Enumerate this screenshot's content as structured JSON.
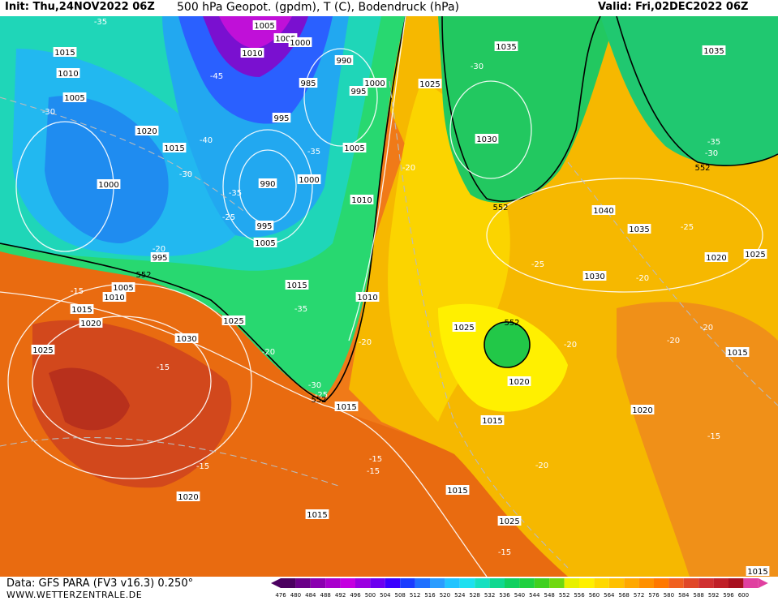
{
  "header": {
    "init": "Init: Thu,24NOV2022 06Z",
    "title": "500 hPa Geopot. (gpdm), T (C), Bodendruck (hPa)",
    "valid": "Valid: Fri,02DEC2022 06Z"
  },
  "footer": {
    "data_source": "Data: GFS PARA (FV3 v16.3) 0.250°",
    "website": "WWW.WETTERZENTRALE.DE"
  },
  "color_scale": {
    "values": [
      "476",
      "480",
      "484",
      "488",
      "492",
      "496",
      "500",
      "504",
      "508",
      "512",
      "516",
      "520",
      "524",
      "528",
      "532",
      "536",
      "540",
      "544",
      "548",
      "552",
      "556",
      "560",
      "564",
      "568",
      "572",
      "576",
      "580",
      "584",
      "588",
      "592",
      "596",
      "600"
    ],
    "colors": [
      "#4b0060",
      "#6a0088",
      "#8a00b0",
      "#a800cc",
      "#c400e0",
      "#9a00e0",
      "#6c00f0",
      "#3a00ff",
      "#1a3cff",
      "#1f70ff",
      "#2a9cff",
      "#22c4ff",
      "#1ee0f0",
      "#17e0c0",
      "#10d890",
      "#10d060",
      "#20d040",
      "#40d020",
      "#70d810",
      "#e8f000",
      "#fff000",
      "#ffd800",
      "#ffc000",
      "#ffa800",
      "#ff9000",
      "#ff7800",
      "#f06020",
      "#e04828",
      "#d03030",
      "#c02028",
      "#a81020",
      "#e040a0"
    ]
  },
  "map": {
    "isobar_labels": [
      {
        "text": "1005"
      },
      {
        "text": "1005"
      },
      {
        "text": "1000"
      },
      {
        "text": "1010"
      },
      {
        "text": "990"
      },
      {
        "text": "1035"
      },
      {
        "text": "1035"
      },
      {
        "text": "1015"
      },
      {
        "text": "1010"
      },
      {
        "text": "1005"
      },
      {
        "text": "985"
      },
      {
        "text": "1000"
      },
      {
        "text": "995"
      },
      {
        "text": "1025"
      },
      {
        "text": "995"
      },
      {
        "text": "1020"
      },
      {
        "text": "1015"
      },
      {
        "text": "1005"
      },
      {
        "text": "1030"
      },
      {
        "text": "1000"
      },
      {
        "text": "990"
      },
      {
        "text": "1000"
      },
      {
        "text": "1010"
      },
      {
        "text": "1040"
      },
      {
        "text": "995"
      },
      {
        "text": "1035"
      },
      {
        "text": "1005"
      },
      {
        "text": "995"
      },
      {
        "text": "1020"
      },
      {
        "text": "1025"
      },
      {
        "text": "1005"
      },
      {
        "text": "1010"
      },
      {
        "text": "1015"
      },
      {
        "text": "1030"
      },
      {
        "text": "1015"
      },
      {
        "text": "1010"
      },
      {
        "text": "1020"
      },
      {
        "text": "1025"
      },
      {
        "text": "1025"
      },
      {
        "text": "1030"
      },
      {
        "text": "1025"
      },
      {
        "text": "1015"
      },
      {
        "text": "1020"
      },
      {
        "text": "1015"
      },
      {
        "text": "1020"
      },
      {
        "text": "1015"
      },
      {
        "text": "1015"
      },
      {
        "text": "1025"
      },
      {
        "text": "1020"
      },
      {
        "text": "1015"
      },
      {
        "text": "1015"
      }
    ],
    "temp_labels": [
      {
        "text": "-35"
      },
      {
        "text": "-30"
      },
      {
        "text": "-45"
      },
      {
        "text": "-30"
      },
      {
        "text": "-40"
      },
      {
        "text": "-30"
      },
      {
        "text": "-35"
      },
      {
        "text": "-35"
      },
      {
        "text": "-25"
      },
      {
        "text": "-20"
      },
      {
        "text": "-20"
      },
      {
        "text": "-15"
      },
      {
        "text": "-35"
      },
      {
        "text": "-20"
      },
      {
        "text": "-30"
      },
      {
        "text": "-25"
      },
      {
        "text": "-20"
      },
      {
        "text": "-35"
      },
      {
        "text": "-30"
      },
      {
        "text": "-25"
      },
      {
        "text": "-25"
      },
      {
        "text": "-20"
      },
      {
        "text": "-20"
      },
      {
        "text": "-20"
      },
      {
        "text": "-20"
      },
      {
        "text": "-15"
      },
      {
        "text": "-15"
      },
      {
        "text": "-15"
      },
      {
        "text": "-15"
      },
      {
        "text": "-20"
      },
      {
        "text": "-15"
      },
      {
        "text": "-15"
      }
    ],
    "geopot_labels": [
      {
        "text": "552"
      },
      {
        "text": "552"
      },
      {
        "text": "552"
      },
      {
        "text": "552"
      },
      {
        "text": "552"
      }
    ]
  }
}
